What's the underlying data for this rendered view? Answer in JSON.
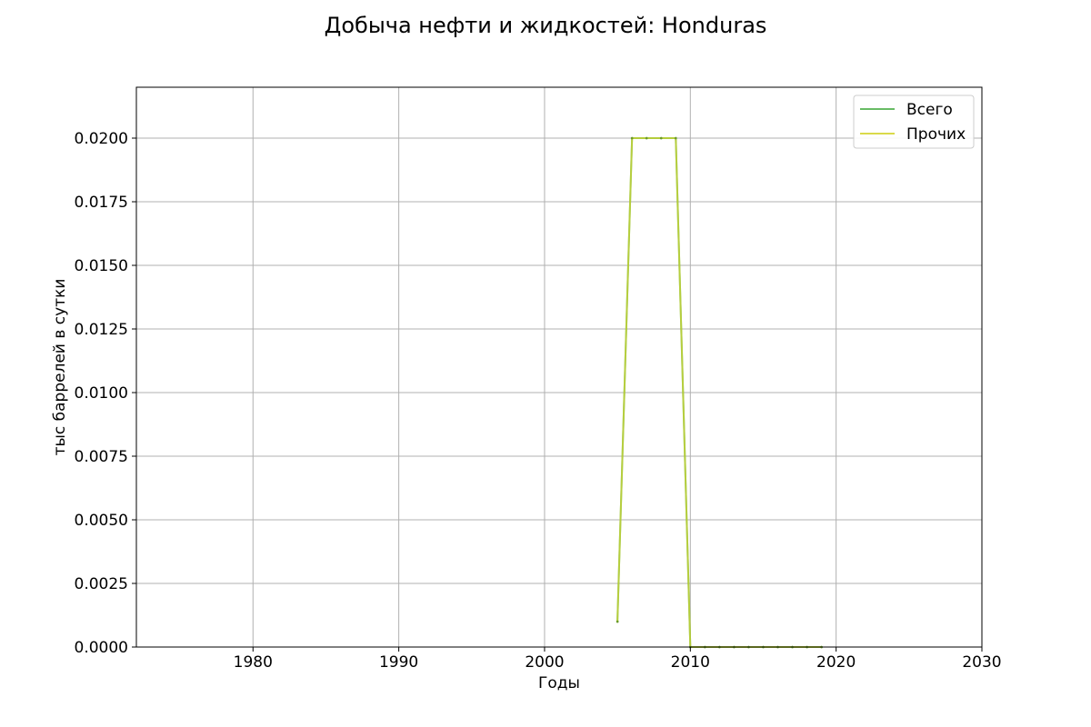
{
  "chart_data": {
    "type": "line",
    "title": "Добыча нефти и жидкостей: Honduras",
    "xlabel": "Годы",
    "ylabel": "тыс баррелей в сутки",
    "xlim": [
      1972,
      2030
    ],
    "ylim": [
      0,
      0.022
    ],
    "x_ticks": [
      "1980",
      "1990",
      "2000",
      "2010",
      "2020",
      "2030"
    ],
    "y_ticks": [
      "0.0000",
      "0.0025",
      "0.0050",
      "0.0075",
      "0.0100",
      "0.0125",
      "0.0150",
      "0.0175",
      "0.0200"
    ],
    "grid": true,
    "legend_position": "top-right",
    "series": [
      {
        "name": "Всего",
        "color": "#4daf4a",
        "x": [
          2005,
          2006,
          2007,
          2008,
          2009,
          2010,
          2011,
          2012,
          2013,
          2014,
          2015,
          2016,
          2017,
          2018,
          2019
        ],
        "y": [
          0.001,
          0.02,
          0.02,
          0.02,
          0.02,
          0,
          0,
          0,
          0,
          0,
          0,
          0,
          0,
          0,
          0
        ]
      },
      {
        "name": "Прочих",
        "color": "#d4d42a",
        "x": [
          2005,
          2006,
          2007,
          2008,
          2009,
          2010,
          2011,
          2012,
          2013,
          2014,
          2015,
          2016,
          2017,
          2018,
          2019
        ],
        "y": [
          0.001,
          0.02,
          0.02,
          0.02,
          0.02,
          0,
          0,
          0,
          0,
          0,
          0,
          0,
          0,
          0,
          0
        ]
      }
    ]
  }
}
